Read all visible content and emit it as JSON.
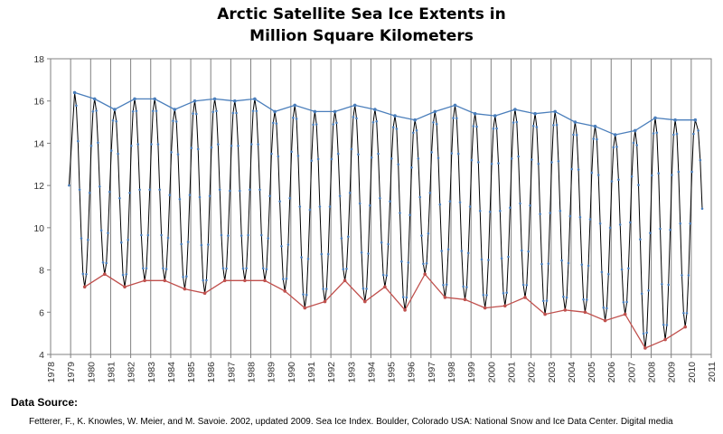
{
  "chart_data": {
    "type": "line",
    "title_line1": "Arctic Satellite Sea Ice Extents in",
    "title_line2": "Million Square Kilometers",
    "xlim": [
      1978,
      2011
    ],
    "ylim": [
      4,
      18
    ],
    "x_ticks": [
      "1978",
      "1979",
      "1980",
      "1981",
      "1982",
      "1983",
      "1984",
      "1985",
      "1986",
      "1987",
      "1988",
      "1989",
      "1990",
      "1991",
      "1992",
      "1993",
      "1994",
      "1995",
      "1996",
      "1997",
      "1998",
      "1999",
      "2000",
      "2001",
      "2002",
      "2003",
      "2004",
      "2005",
      "2006",
      "2007",
      "2008",
      "2009",
      "2010",
      "2011"
    ],
    "y_ticks": [
      "4",
      "6",
      "8",
      "10",
      "12",
      "14",
      "16",
      "18"
    ],
    "grid": "vertical",
    "series": [
      {
        "color": "#4a7ebb",
        "x": [
          1979.2,
          1980.2,
          1981.2,
          1982.2,
          1983.2,
          1984.2,
          1985.2,
          1986.2,
          1987.2,
          1988.2,
          1989.2,
          1990.2,
          1991.2,
          1992.2,
          1993.2,
          1994.2,
          1995.2,
          1996.2,
          1997.2,
          1998.2,
          1999.2,
          2000.2,
          2001.2,
          2002.2,
          2003.2,
          2004.2,
          2005.2,
          2006.2,
          2007.2,
          2008.2,
          2009.2,
          2010.2
        ],
        "values": [
          16.4,
          16.1,
          15.6,
          16.1,
          16.1,
          15.6,
          16.0,
          16.1,
          16.0,
          16.1,
          15.5,
          15.8,
          15.5,
          15.5,
          15.8,
          15.6,
          15.3,
          15.1,
          15.5,
          15.8,
          15.4,
          15.3,
          15.6,
          15.4,
          15.5,
          15.0,
          14.8,
          14.4,
          14.6,
          15.2,
          15.1,
          15.1
        ]
      },
      {
        "color": "#c0504d",
        "x": [
          1979.7,
          1980.7,
          1981.7,
          1982.7,
          1983.7,
          1984.7,
          1985.7,
          1986.7,
          1987.7,
          1988.7,
          1989.7,
          1990.7,
          1991.7,
          1992.7,
          1993.7,
          1994.7,
          1995.7,
          1996.7,
          1997.7,
          1998.7,
          1999.7,
          2000.7,
          2001.7,
          2002.7,
          2003.7,
          2004.7,
          2005.7,
          2006.7,
          2007.7,
          2008.7,
          2009.7
        ],
        "values": [
          7.2,
          7.8,
          7.2,
          7.5,
          7.5,
          7.1,
          6.9,
          7.5,
          7.5,
          7.5,
          7.0,
          6.2,
          6.5,
          7.5,
          6.5,
          7.2,
          6.1,
          7.8,
          6.7,
          6.6,
          6.2,
          6.3,
          6.7,
          5.9,
          6.1,
          6.0,
          5.6,
          5.9,
          4.3,
          4.7,
          5.3
        ]
      }
    ]
  },
  "source": {
    "label": "Data Source:",
    "citation": "Fetterer, F., K. Knowles, W. Meier, and M. Savoie. 2002, updated 2009. Sea Ice Index. Boulder, Colorado USA: National Snow and Ice Data Center. Digital media"
  },
  "colors": {
    "monthly_line": "#000000",
    "monthly_points": "#4a7ebb",
    "grid": "#808080",
    "axis": "#808080"
  }
}
